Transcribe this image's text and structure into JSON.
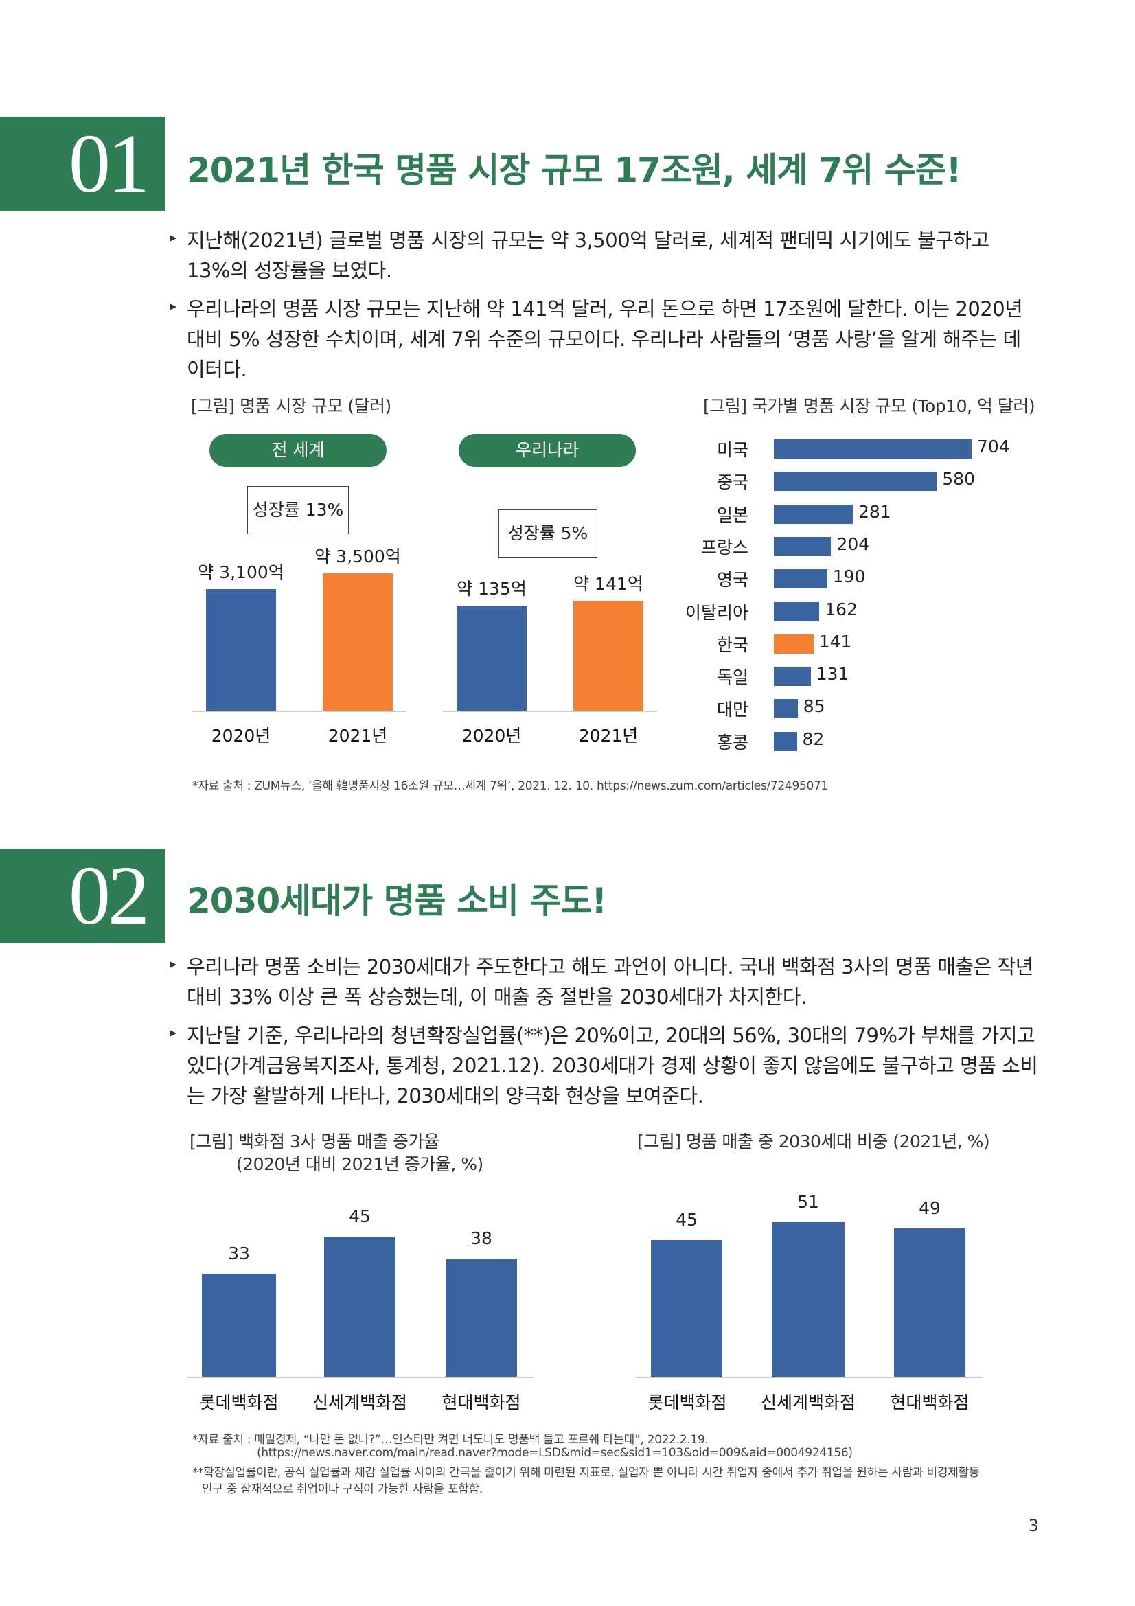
{
  "colors": {
    "green": "#2e7d55",
    "blue": "#3b65a0",
    "orange": "#f57f33"
  },
  "sec1": {
    "number": "01",
    "title": "2021년 한국 명품 시장 규모 17조원, 세계 7위 수준!",
    "bullets": [
      "지난해(2021년) 글로벌 명품 시장의 규모는 약 3,500억 달러로, 세계적 팬데믹 시기에도 불구하고 13%의 성장률을 보였다.",
      "우리나라의 명품 시장 규모는 지난해 약 141억 달러, 우리 돈으로 하면 17조원에 달한다. 이는 2020년 대비 5% 성장한 수치이며, 세계 7위 수준의 규모이다. 우리나라 사람들의 ‘명품 사랑’을 알게 해주는 데이터다."
    ],
    "fig_left_caption": "[그림] 명품 시장 규모 (달러)",
    "fig_right_caption": "[그림] 국가별 명품 시장 규모 (Top10, 억 달러)",
    "world_pill": "전 세계",
    "korea_pill": "우리나라",
    "world_growth": "성장률 13%",
    "korea_growth": "성장률 5%",
    "source": "*자료 출처 : ZUM뉴스, ‘올해 韓명품시장 16조원 규모…세계 7위’, 2021. 12. 10.   https://news.zum.com/articles/72495071"
  },
  "sec2": {
    "number": "02",
    "title": "2030세대가 명품 소비 주도!",
    "bullets": [
      "우리나라 명품 소비는 2030세대가 주도한다고 해도 과언이 아니다. 국내 백화점 3사의 명품 매출은 작년 대비 33% 이상 큰 폭 상승했는데, 이 매출 중 절반을 2030세대가 차지한다.",
      "지난달 기준, 우리나라의 청년확장실업률(**)은 20%이고, 20대의 56%, 30대의 79%가 부채를 가지고 있다(가계금융복지조사, 통계청, 2021.12). 2030세대가 경제 상황이 좋지 않음에도 불구하고 명품 소비는 가장 활발하게 나타나, 2030세대의 양극화 현상을 보여준다."
    ],
    "fig_left_caption_1": "[그림] 백화점 3사 명품 매출 증가율",
    "fig_left_caption_2": "(2020년 대비 2021년 증가율, %)",
    "fig_right_caption": "[그림] 명품 매출 중 2030세대 비중 (2021년, %)",
    "source_1": "*자료 출처 : 매일경제, “나만 돈 없나?”…인스타만 켜면 너도나도 명품백 들고 포르쉐 타는데”, 2022.2.19.",
    "source_2": "(https://news.naver.com/main/read.naver?mode=LSD&mid=sec&sid1=103&oid=009&aid=0004924156)",
    "source_3": "**확장실업률이란, 공식 실업률과 체감 실업률 사이의 간극을 줄이기 위해 마련된 지표로, 실업자 뿐 아니라 시간 취업자 중에서 추가 취업을 원하는 사람과 비경제활동",
    "source_4": "인구 중 잠재적으로 취업이나 구직이 가능한 사람을 포함함."
  },
  "page_number": "3",
  "chart_data": [
    {
      "type": "bar",
      "title": "전 세계",
      "categories": [
        "2020년",
        "2021년"
      ],
      "values": [
        3100,
        3500
      ],
      "value_labels": [
        "약 3,100억",
        "약 3,500억"
      ],
      "bar_colors": [
        "#3b65a0",
        "#f57f33"
      ],
      "ylim": [
        0,
        3500
      ]
    },
    {
      "type": "bar",
      "title": "우리나라",
      "categories": [
        "2020년",
        "2021년"
      ],
      "values": [
        135,
        141
      ],
      "value_labels": [
        "약 135억",
        "약 141억"
      ],
      "bar_colors": [
        "#3b65a0",
        "#f57f33"
      ],
      "ylim": [
        0,
        141
      ]
    },
    {
      "type": "bar",
      "orientation": "horizontal",
      "categories": [
        "미국",
        "중국",
        "일본",
        "프랑스",
        "영국",
        "이탈리아",
        "한국",
        "독일",
        "대만",
        "홍콩"
      ],
      "values": [
        704,
        580,
        281,
        204,
        190,
        162,
        141,
        131,
        85,
        82
      ],
      "highlight": "한국",
      "xlim": [
        0,
        704
      ]
    },
    {
      "type": "bar",
      "categories": [
        "롯데백화점",
        "신세계백화점",
        "현대백화점"
      ],
      "values": [
        33,
        45,
        38
      ],
      "ylim": [
        0,
        45
      ]
    },
    {
      "type": "bar",
      "categories": [
        "롯데백화점",
        "신세계백화점",
        "현대백화점"
      ],
      "values": [
        45,
        51,
        49
      ],
      "ylim": [
        0,
        51
      ]
    }
  ]
}
